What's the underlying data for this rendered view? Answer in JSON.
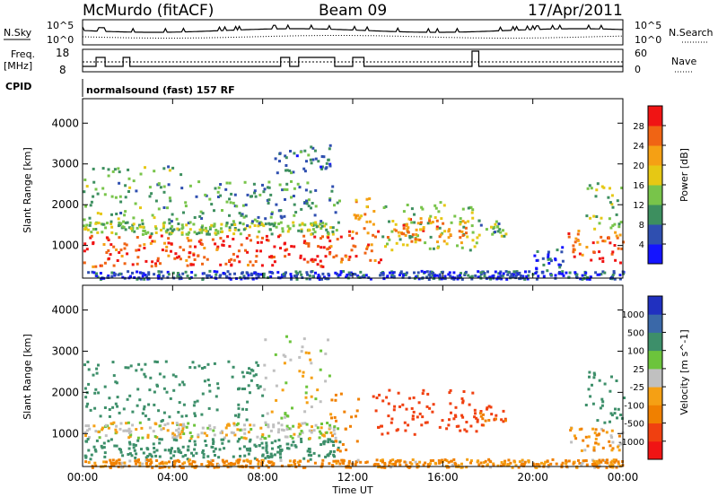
{
  "header": {
    "station": "McMurdo (fitACF)",
    "beam": "Beam 09",
    "date": "17/Apr/2011"
  },
  "aux_labels": {
    "nsky": "N.Sky",
    "nsearch": "N.Search",
    "freq_top": "Freq.",
    "freq_unit": "[MHz]",
    "nave": "Nave",
    "cpid": "CPID",
    "cpid_value": "normalsound (fast) 157 RF",
    "noise_hi": "10^5",
    "noise_lo": "10^0",
    "freq_hi": "18",
    "freq_lo": "8",
    "nave_hi": "60",
    "nave_lo": "0"
  },
  "colors": {
    "power": [
      "#1414ff",
      "#2f4fb0",
      "#3d8f5f",
      "#78c44a",
      "#e6c814",
      "#f5a014",
      "#f06414",
      "#f01414"
    ],
    "velocity": [
      "#2030c0",
      "#3a68a8",
      "#3d8f6a",
      "#6cc43c",
      "#c0c0c0",
      "#f5a014",
      "#f08000",
      "#f04010",
      "#f01414"
    ]
  },
  "chart_data": [
    {
      "type": "heatmap",
      "title": "Power",
      "ylabel": "Slant Range [km]",
      "xlabel": "",
      "ylim": [
        200,
        4600
      ],
      "yticks": [
        "1000",
        "2000",
        "3000",
        "4000"
      ],
      "xlim": [
        0,
        24
      ],
      "colorbar": {
        "label": "Power [dB]",
        "ticks": [
          "4",
          "8",
          "12",
          "16",
          "20",
          "24",
          "28"
        ],
        "range": [
          0,
          32
        ]
      },
      "regions": [
        {
          "t0": 0.0,
          "t1": 11.4,
          "r0": 500,
          "r1": 1300,
          "level": 28
        },
        {
          "t0": 0.0,
          "t1": 11.4,
          "r0": 1300,
          "r1": 1600,
          "level": 14
        },
        {
          "t0": 0.0,
          "t1": 4.5,
          "r0": 1600,
          "r1": 3000,
          "level": 12
        },
        {
          "t0": 4.5,
          "t1": 11.4,
          "r0": 1500,
          "r1": 2600,
          "level": 10
        },
        {
          "t0": 8.5,
          "t1": 11.0,
          "r0": 2800,
          "r1": 3500,
          "level": 8
        },
        {
          "t0": 11.4,
          "t1": 13.2,
          "r0": 600,
          "r1": 1500,
          "level": 26
        },
        {
          "t0": 12.0,
          "t1": 13.0,
          "r0": 1500,
          "r1": 2200,
          "level": 22
        },
        {
          "t0": 13.2,
          "t1": 17.5,
          "r0": 900,
          "r1": 2100,
          "level": 14
        },
        {
          "t0": 13.5,
          "t1": 17.0,
          "r0": 1100,
          "r1": 1700,
          "level": 24
        },
        {
          "t0": 17.5,
          "t1": 18.8,
          "r0": 1200,
          "r1": 1700,
          "level": 12
        },
        {
          "t0": 20.0,
          "t1": 21.5,
          "r0": 300,
          "r1": 1000,
          "level": 6
        },
        {
          "t0": 21.5,
          "t1": 24.0,
          "r0": 600,
          "r1": 1400,
          "level": 26
        },
        {
          "t0": 22.3,
          "t1": 24.0,
          "r0": 1400,
          "r1": 2600,
          "level": 14
        },
        {
          "t0": 0.0,
          "t1": 24.0,
          "r0": 200,
          "r1": 400,
          "level": 5
        }
      ]
    },
    {
      "type": "heatmap",
      "title": "Velocity",
      "ylabel": "Slant Range [km]",
      "xlabel": "Time UT",
      "ylim": [
        200,
        4600
      ],
      "yticks": [
        "1000",
        "2000",
        "3000",
        "4000"
      ],
      "xlim": [
        0,
        24
      ],
      "xticks": [
        "00:00",
        "04:00",
        "08:00",
        "12:00",
        "16:00",
        "20:00",
        "00:00"
      ],
      "colorbar": {
        "label": "Velocity [m s^-1]",
        "ticks": [
          "1000",
          "500",
          "100",
          "25",
          "-25",
          "-100",
          "-500",
          "-1000"
        ],
        "range": [
          -1500,
          1500
        ]
      },
      "regions": [
        {
          "t0": 0.0,
          "t1": 11.4,
          "r0": 900,
          "r1": 1300,
          "vel": 0
        },
        {
          "t0": 0.0,
          "t1": 11.4,
          "r0": 400,
          "r1": 900,
          "vel": 150
        },
        {
          "t0": 0.0,
          "t1": 8.0,
          "r0": 1300,
          "r1": 2800,
          "vel": 200
        },
        {
          "t0": 8.0,
          "t1": 11.0,
          "r0": 1400,
          "r1": 3400,
          "vel": 0
        },
        {
          "t0": 11.0,
          "t1": 12.3,
          "r0": 600,
          "r1": 2000,
          "vel": -150
        },
        {
          "t0": 12.8,
          "t1": 17.5,
          "r0": 1000,
          "r1": 2100,
          "vel": -400
        },
        {
          "t0": 17.5,
          "t1": 18.8,
          "r0": 1200,
          "r1": 1700,
          "vel": -300
        },
        {
          "t0": 21.5,
          "t1": 24.0,
          "r0": 600,
          "r1": 1200,
          "vel": -60
        },
        {
          "t0": 22.3,
          "t1": 24.0,
          "r0": 1200,
          "r1": 2600,
          "vel": 200
        },
        {
          "t0": 0.0,
          "t1": 24.0,
          "r0": 200,
          "r1": 400,
          "vel": -80
        }
      ]
    }
  ]
}
